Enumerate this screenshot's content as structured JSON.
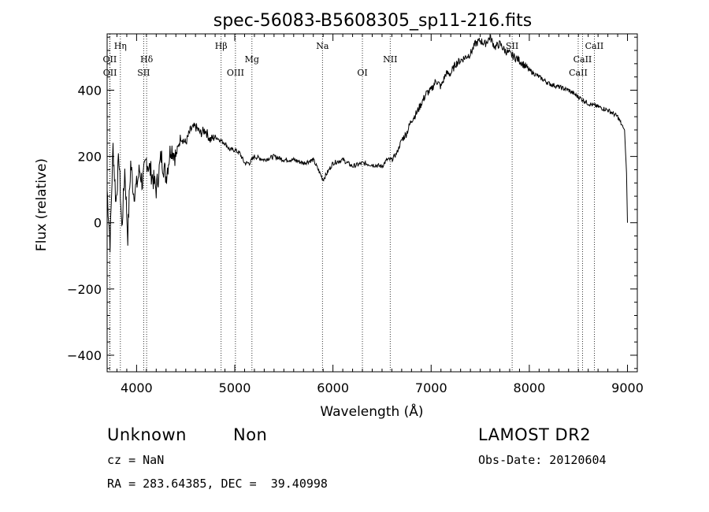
{
  "chart_data": {
    "type": "line",
    "title": "spec-56083-B5608305_sp11-216.fits",
    "xlabel": "Wavelength (Å)",
    "ylabel": "Flux (relative)",
    "xlim": [
      3700,
      9100
    ],
    "ylim": [
      -450,
      570
    ],
    "x_ticks": [
      4000,
      5000,
      6000,
      7000,
      8000,
      9000
    ],
    "y_ticks": [
      -400,
      -200,
      0,
      200,
      400
    ],
    "x_tick_labels": [
      "4000",
      "5000",
      "6000",
      "7000",
      "8000",
      "9000"
    ],
    "y_tick_labels": [
      "−400",
      "−200",
      "0",
      "200",
      "400"
    ],
    "grid": false,
    "series": [
      {
        "x": [
          3700,
          3730,
          3760,
          3790,
          3820,
          3850,
          3880,
          3910,
          3940,
          3970,
          4000,
          4030,
          4060,
          4100,
          4150,
          4200,
          4250,
          4300,
          4350,
          4400,
          4450,
          4500,
          4550,
          4600,
          4650,
          4700,
          4750,
          4800,
          4850,
          4900,
          4950,
          5000,
          5050,
          5100,
          5150,
          5200,
          5300,
          5400,
          5500,
          5600,
          5700,
          5800,
          5900,
          6000,
          6100,
          6200,
          6300,
          6400,
          6500,
          6550,
          6600,
          6650,
          6700,
          6750,
          6800,
          6850,
          6900,
          6950,
          7000,
          7050,
          7100,
          7150,
          7200,
          7250,
          7300,
          7350,
          7400,
          7450,
          7500,
          7550,
          7600,
          7650,
          7700,
          7750,
          7800,
          7850,
          7900,
          8000,
          8100,
          8200,
          8300,
          8400,
          8500,
          8600,
          8700,
          8800,
          8900,
          8950,
          8970,
          8990,
          9000
        ],
        "y": [
          100,
          -60,
          230,
          60,
          200,
          -20,
          160,
          -40,
          180,
          90,
          110,
          160,
          120,
          190,
          150,
          100,
          200,
          140,
          230,
          200,
          260,
          240,
          280,
          290,
          270,
          280,
          250,
          260,
          250,
          240,
          220,
          220,
          210,
          180,
          180,
          200,
          190,
          200,
          190,
          190,
          180,
          190,
          130,
          180,
          190,
          170,
          180,
          175,
          170,
          190,
          190,
          210,
          250,
          270,
          310,
          330,
          360,
          390,
          400,
          430,
          410,
          450,
          450,
          480,
          490,
          500,
          510,
          540,
          550,
          540,
          560,
          530,
          540,
          520,
          510,
          500,
          490,
          460,
          440,
          420,
          410,
          400,
          380,
          360,
          350,
          340,
          320,
          290,
          280,
          150,
          0
        ]
      }
    ],
    "spectral_lines": [
      {
        "label": "Hη",
        "x": 3835,
        "row": 0
      },
      {
        "label": "OII",
        "x": 3727,
        "row": 1
      },
      {
        "label": "OII",
        "x": 3729,
        "row": 2
      },
      {
        "label": "Hδ",
        "x": 4102,
        "row": 1
      },
      {
        "label": "SII",
        "x": 4072,
        "row": 2
      },
      {
        "label": "Hβ",
        "x": 4861,
        "row": 0
      },
      {
        "label": "Mg",
        "x": 5175,
        "row": 1
      },
      {
        "label": "OIII",
        "x": 5007,
        "row": 2
      },
      {
        "label": "Na",
        "x": 5893,
        "row": 0
      },
      {
        "label": "NII",
        "x": 6583,
        "row": 1
      },
      {
        "label": "OI",
        "x": 6300,
        "row": 2
      },
      {
        "label": "SII",
        "x": 7825,
        "row": 0
      },
      {
        "label": "CaII",
        "x": 8662,
        "row": 0
      },
      {
        "label": "CaII",
        "x": 8542,
        "row": 1
      },
      {
        "label": "CaII",
        "x": 8498,
        "row": 2
      }
    ]
  },
  "footer": {
    "class_label": "Unknown",
    "subclass_label": "Non",
    "cz": "cz = NaN",
    "coords": "RA = 283.64385, DEC =  39.40998",
    "survey": "LAMOST DR2",
    "obs_date": "Obs-Date: 20120604"
  },
  "colors": {
    "line": "#000000",
    "background": "#ffffff",
    "marker": "#000000"
  }
}
